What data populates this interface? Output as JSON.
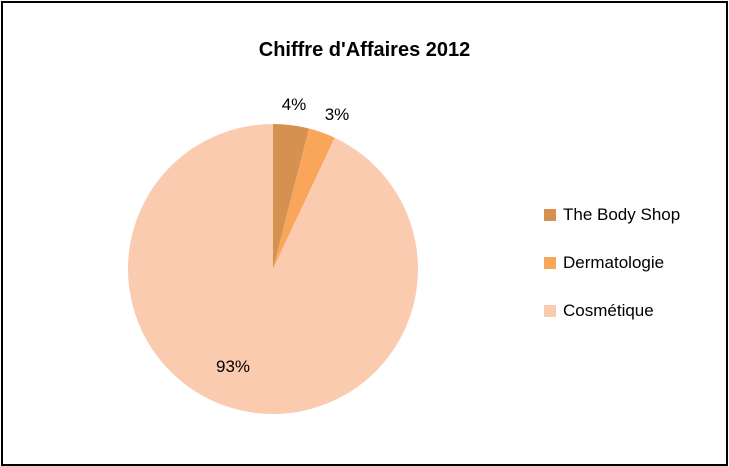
{
  "chart_data": {
    "type": "pie",
    "title": "Chiffre d'Affaires 2012",
    "categories": [
      "The Body Shop",
      "Dermatologie",
      "Cosmétique"
    ],
    "values": [
      4,
      3,
      93
    ],
    "labels": [
      "4%",
      "3%",
      "93%"
    ],
    "colors": [
      "#D59150",
      "#F9A55A",
      "#FBCBB0"
    ],
    "start_angle_deg": 0,
    "direction": "clockwise",
    "legend_position": "right"
  }
}
